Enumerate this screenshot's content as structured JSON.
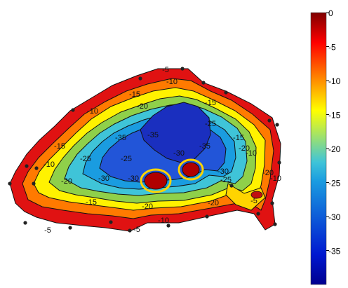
{
  "chart_data": {
    "type": "heatmap",
    "subtype": "filled-contour",
    "colormap": "jet",
    "colorbar": {
      "position": "right",
      "min": -40,
      "max": 0,
      "tick_labels": [
        "0",
        "-5",
        "-10",
        "-15",
        "-20",
        "-25",
        "-30",
        "-35"
      ],
      "tick_values": [
        0,
        -5,
        -10,
        -15,
        -20,
        -25,
        -30,
        -35
      ]
    },
    "contour_levels": [
      -5,
      -10,
      -15,
      -20,
      -25,
      -30,
      -35
    ],
    "contour_labels": [
      "-5",
      "-5",
      "-5",
      "-5",
      "-10",
      "-10",
      "-10",
      "-10",
      "-10",
      "-10",
      "-15",
      "-15",
      "-15",
      "-15",
      "-15",
      "-20",
      "-20",
      "-20",
      "-20",
      "-20",
      "-20",
      "-25",
      "-25",
      "-25",
      "-25",
      "-30",
      "-30",
      "-30",
      "-30",
      "-35",
      "-35",
      "-35"
    ],
    "title": "",
    "xlabel": "",
    "ylabel": "",
    "grid": false,
    "axes_visible": false
  }
}
